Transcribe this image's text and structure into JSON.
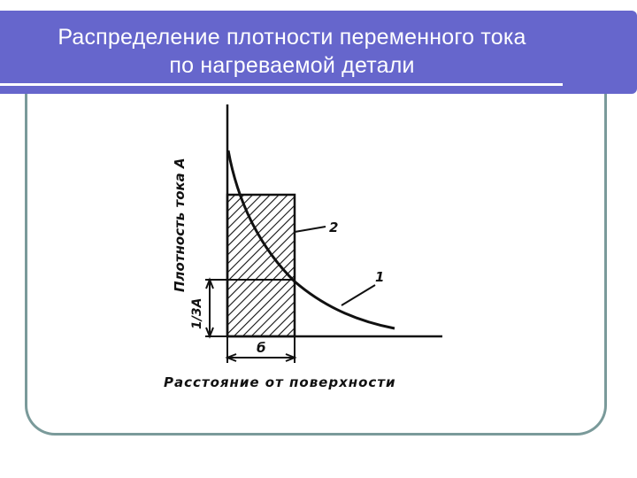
{
  "slide": {
    "title_line1": "Распределение плотности переменного тока",
    "title_line2": "по нагреваемой детали"
  },
  "diagram": {
    "y_axis_label": "Плотность тока А",
    "x_axis_label": "Расстояние от поверхности",
    "curve_label": "1",
    "rect_label": "2",
    "level_label": "1/3A",
    "depth_label": "б"
  },
  "colors": {
    "banner": "#6666cc",
    "frame": "#7a9a9a",
    "ink": "#111111"
  }
}
